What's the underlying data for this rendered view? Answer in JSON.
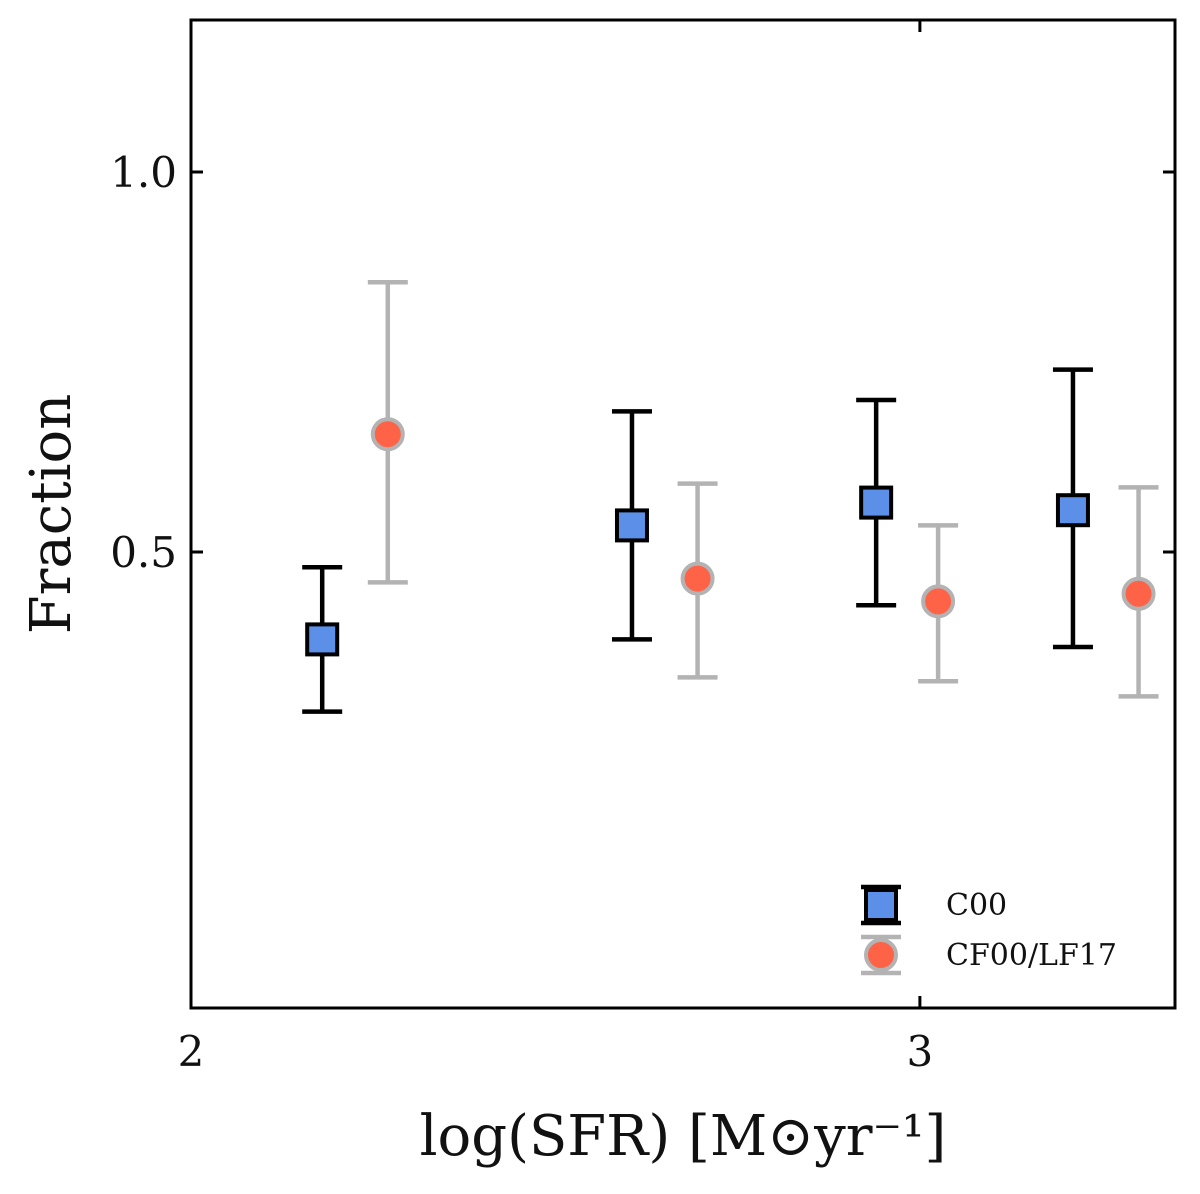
{
  "chart_data": {
    "type": "scatter",
    "title": "",
    "xlabel": "log(SFR) [M⊙yr⁻¹]",
    "ylabel": "Fraction",
    "xlim": [
      2.0,
      3.35
    ],
    "ylim": [
      -0.1,
      1.2
    ],
    "xticks": [
      2,
      3
    ],
    "yticks": [
      0.5,
      1.0
    ],
    "xtick_labels": [
      "2",
      "3"
    ],
    "ytick_labels": [
      "0.5",
      "1.0"
    ],
    "grid": false,
    "legend_position": "bottom-right",
    "series": [
      {
        "name": "C00",
        "marker": "square",
        "color": "#5b8fe8",
        "edge_color": "#000000",
        "errorbar_color": "#000000",
        "x": [
          2.18,
          2.605,
          2.94,
          3.21
        ],
        "y": [
          0.385,
          0.535,
          0.565,
          0.555
        ],
        "y_lower": [
          0.29,
          0.385,
          0.43,
          0.375
        ],
        "y_upper": [
          0.48,
          0.685,
          0.7,
          0.74
        ]
      },
      {
        "name": "CF00/LF17",
        "marker": "circle",
        "color": "#ff6347",
        "edge_color": "#b3b3b3",
        "errorbar_color": "#b3b3b3",
        "x": [
          2.27,
          2.695,
          3.025,
          3.3
        ],
        "y": [
          0.655,
          0.465,
          0.435,
          0.445
        ],
        "y_lower": [
          0.46,
          0.335,
          0.33,
          0.31
        ],
        "y_upper": [
          0.855,
          0.59,
          0.535,
          0.585
        ]
      }
    ]
  }
}
